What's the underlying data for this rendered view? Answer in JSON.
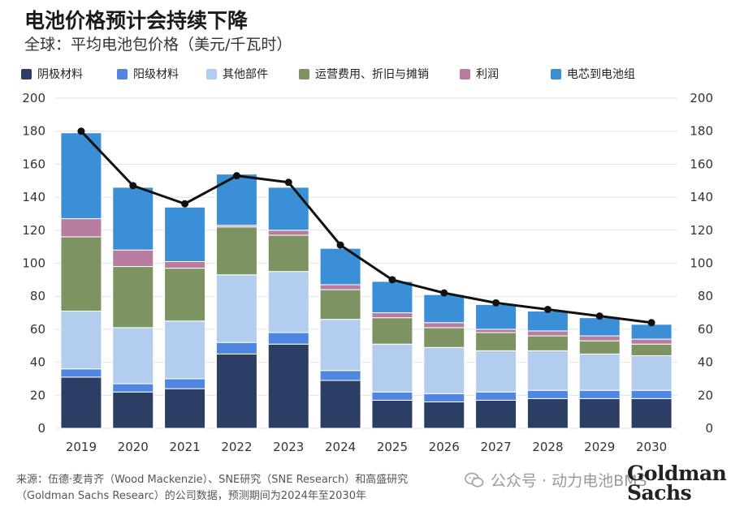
{
  "header": {
    "title": "电池价格预计会持续下降",
    "subtitle": "全球：平均电池包价格（美元/千瓦时）"
  },
  "footer": {
    "source_line1": "来源：伍德·麦肯齐（Wood Mackenzie）、SNE研究（SNE Research）和高盛研究",
    "source_line2": "（Goldman Sachs Researc）的公司数据，预测期间为2024年至2030年",
    "watermark_text": "公众号 · 动力电池BMS",
    "logo_line1": "Goldman",
    "logo_line2": "Sachs"
  },
  "chart_data": {
    "type": "bar",
    "stacked": true,
    "categories": [
      "2019",
      "2020",
      "2021",
      "2022",
      "2023",
      "2024",
      "2025",
      "2026",
      "2027",
      "2028",
      "2029",
      "2030"
    ],
    "ylim": [
      0,
      200
    ],
    "yticks": [
      0,
      20,
      40,
      60,
      80,
      100,
      120,
      140,
      160,
      180,
      200
    ],
    "grid": true,
    "legend_position": "top",
    "series": [
      {
        "name": "阴极材料",
        "color": "#2c3e63",
        "values": [
          31,
          22,
          24,
          45,
          51,
          29,
          17,
          16,
          17,
          18,
          18,
          18
        ]
      },
      {
        "name": "阳级材料",
        "color": "#4f86e0",
        "values": [
          5,
          5,
          6,
          7,
          7,
          6,
          5,
          5,
          5,
          5,
          5,
          5
        ]
      },
      {
        "name": "其他部件",
        "color": "#b2cdee",
        "values": [
          35,
          34,
          35,
          41,
          37,
          31,
          29,
          28,
          25,
          24,
          22,
          21
        ]
      },
      {
        "name": "运营费用、折旧与摊销",
        "color": "#7d9462",
        "values": [
          45,
          37,
          32,
          29,
          22,
          18,
          16,
          12,
          11,
          9,
          8,
          7
        ]
      },
      {
        "name": "利润",
        "color": "#b87c9e",
        "values": [
          11,
          10,
          4,
          1,
          3,
          3,
          3,
          3,
          2,
          3,
          3,
          3
        ]
      },
      {
        "name": "电芯到电池组",
        "color": "#3b8fd6",
        "values": [
          52,
          38,
          33,
          31,
          26,
          22,
          19,
          17,
          15,
          12,
          11,
          9
        ]
      }
    ],
    "line": {
      "color": "#111111",
      "values": [
        180,
        147,
        136,
        153,
        149,
        111,
        90,
        82,
        76,
        72,
        68,
        64
      ]
    }
  }
}
